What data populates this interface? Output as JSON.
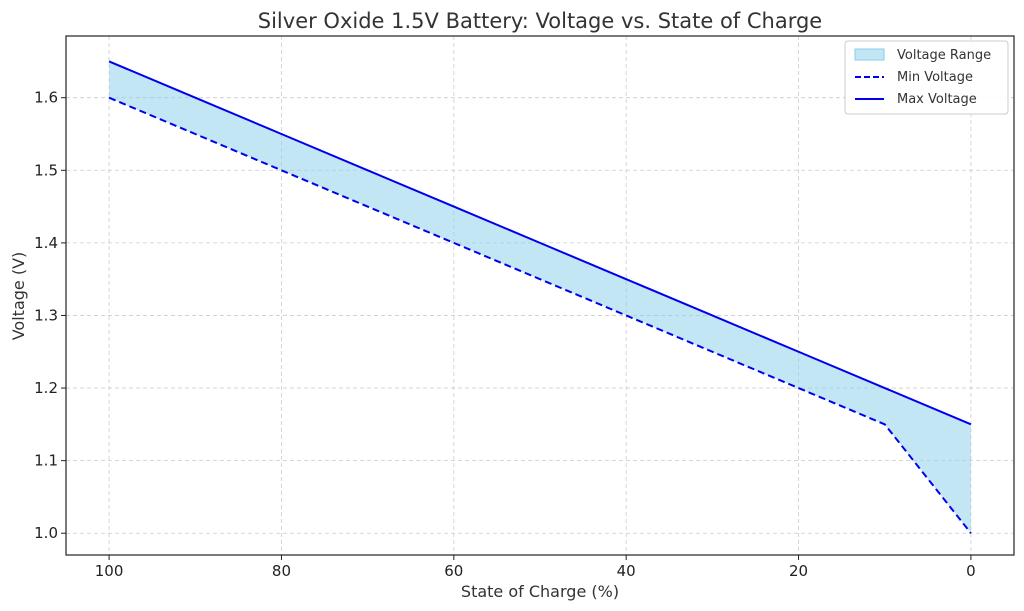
{
  "chart_data": {
    "type": "line",
    "title": "Silver Oxide 1.5V Battery: Voltage vs. State of Charge",
    "xlabel": "State of Charge (%)",
    "ylabel": "Voltage (V)",
    "x": [
      100,
      90,
      80,
      70,
      60,
      50,
      40,
      30,
      20,
      10,
      0
    ],
    "xlim": [
      105,
      -5
    ],
    "ylim": [
      0.97,
      1.685
    ],
    "x_reversed": true,
    "xticks": [
      100,
      80,
      60,
      40,
      20,
      0
    ],
    "xtick_labels": [
      "100",
      "80",
      "60",
      "40",
      "20",
      "0"
    ],
    "yticks": [
      1.0,
      1.1,
      1.2,
      1.3,
      1.4,
      1.5,
      1.6
    ],
    "ytick_labels": [
      "1.0",
      "1.1",
      "1.2",
      "1.3",
      "1.4",
      "1.5",
      "1.6"
    ],
    "grid": true,
    "legend_position": "top-right",
    "fill": {
      "name": "Voltage Range",
      "color": "#87ceeb",
      "opacity": 0.5,
      "between": [
        "Min Voltage",
        "Max Voltage"
      ]
    },
    "series": [
      {
        "name": "Min Voltage",
        "style": "dashed",
        "color": "#0000ee",
        "values": [
          1.6,
          1.55,
          1.5,
          1.45,
          1.4,
          1.35,
          1.3,
          1.25,
          1.2,
          1.15,
          1.0
        ]
      },
      {
        "name": "Max Voltage",
        "style": "solid",
        "color": "#0000ee",
        "values": [
          1.65,
          1.6,
          1.55,
          1.5,
          1.45,
          1.4,
          1.35,
          1.3,
          1.25,
          1.2,
          1.15
        ]
      }
    ]
  }
}
